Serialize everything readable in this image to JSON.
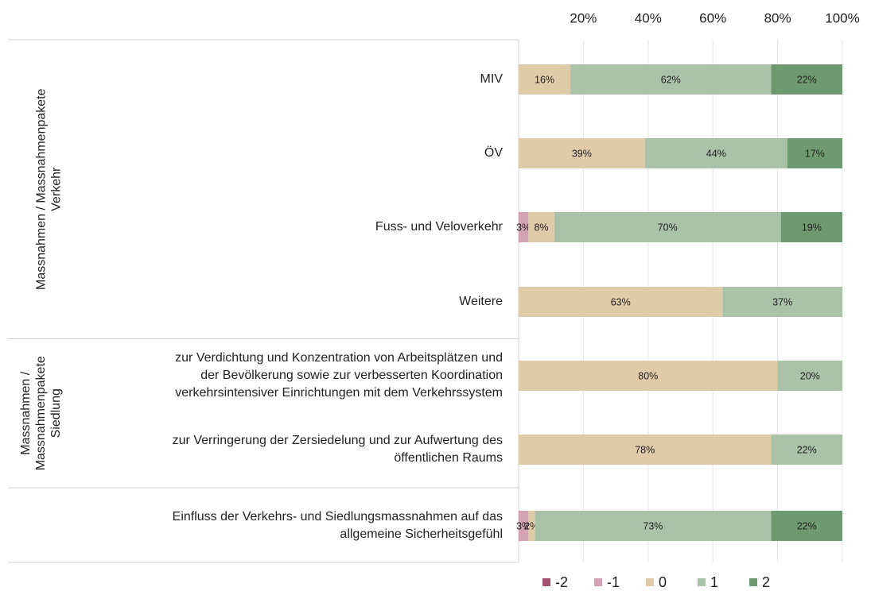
{
  "chart_data": {
    "type": "stacked-bar-horizontal",
    "categories": [
      [
        "MIV"
      ],
      [
        "ÖV"
      ],
      [
        "Fuss- und Veloverkehr"
      ],
      [
        "Weitere"
      ],
      [
        "zur Verdichtung und Konzentration von Arbeitsplätzen und",
        "der Bevölkerung sowie zur verbesserten Koordination",
        "verkehrsintensiver Einrichtungen mit dem Verkehrssystem"
      ],
      [
        "zur Verringerung der Zersiedelung und zur Aufwertung des",
        "öffentlichen Raums"
      ],
      [
        "Einfluss der Verkehrs- und Siedlungsmassnahmen auf das",
        "allgemeine Sicherheitsgefühl"
      ]
    ],
    "groups": [
      {
        "label": [
          "Massnahmen / Massnahmenpakete",
          "Verkehr"
        ],
        "span": 4
      },
      {
        "label": [
          "Massnahmen /",
          "Massnahmenpakete",
          "Siedlung"
        ],
        "span": 2
      }
    ],
    "series": [
      {
        "name": "-2",
        "color": "#a3536f",
        "values": [
          0,
          0,
          0,
          0,
          0,
          0,
          0
        ],
        "value_labels": [
          null,
          null,
          null,
          null,
          null,
          null,
          null
        ]
      },
      {
        "name": "-1",
        "color": "#d3a2b5",
        "values": [
          0,
          0,
          3,
          0,
          0,
          0,
          3
        ],
        "value_labels": [
          null,
          null,
          "3%",
          null,
          null,
          null,
          "3%"
        ]
      },
      {
        "name": "0",
        "color": "#dfcaa9",
        "values": [
          16,
          39,
          8,
          63,
          80,
          78,
          2
        ],
        "value_labels": [
          "16%",
          "39%",
          "8%",
          "63%",
          "80%",
          "78%",
          "2%"
        ]
      },
      {
        "name": "1",
        "color": "#aac3a8",
        "values": [
          62,
          44,
          70,
          37,
          20,
          22,
          73
        ],
        "value_labels": [
          "62%",
          "44%",
          "70%",
          "37%",
          "20%",
          "22%",
          "73%"
        ]
      },
      {
        "name": "2",
        "color": "#6f9a71",
        "values": [
          22,
          17,
          19,
          0,
          0,
          0,
          22
        ],
        "value_labels": [
          "22%",
          "17%",
          "19%",
          null,
          null,
          null,
          "22%"
        ]
      }
    ],
    "xlim": [
      0,
      100
    ],
    "xticks": [
      {
        "value": 20,
        "label": "20%"
      },
      {
        "value": 40,
        "label": "40%"
      },
      {
        "value": 60,
        "label": "60%"
      },
      {
        "value": 80,
        "label": "80%"
      },
      {
        "value": 100,
        "label": "100%"
      }
    ],
    "grid": true,
    "legend": "bottom"
  }
}
